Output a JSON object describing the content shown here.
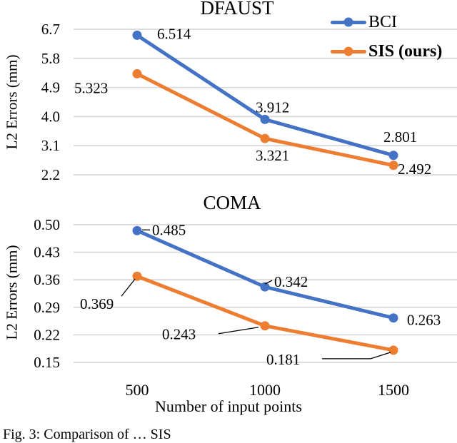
{
  "figure": {
    "caption": "Fig. 3:  Comparison of … SIS",
    "x_axis_title": "Number of input points",
    "y_axis_title": "L2 Errors (mm)"
  },
  "legend": {
    "position": "top-right",
    "items": [
      {
        "label": "BCI",
        "color": "#4472C4",
        "bold": false,
        "marker": "circle"
      },
      {
        "label": "SIS (ours)",
        "color": "#ED7D31",
        "bold": true,
        "marker": "circle"
      }
    ]
  },
  "colors": {
    "bci": "#4472C4",
    "sis": "#ED7D31",
    "gridline": "#D9D9D9",
    "text": "#000000",
    "background": "#FFFFFF"
  },
  "chart_data": [
    {
      "id": "dfaust",
      "type": "line",
      "title": "DFAUST",
      "categories": [
        "500",
        "1000",
        "1500"
      ],
      "xlabel": "Number of input points",
      "ylabel": "L2 Errors (mm)",
      "ylim": [
        2.2,
        6.7
      ],
      "yticks": [
        "6.7",
        "5.8",
        "4.9",
        "4.0",
        "3.1",
        "2.2"
      ],
      "grid": true,
      "show_x_tick_labels": false,
      "series": [
        {
          "name": "BCI",
          "color": "#4472C4",
          "values": [
            6.514,
            3.912,
            2.801
          ],
          "point_labels": [
            {
              "text": "6.514",
              "dx": 28,
              "dy": -2,
              "leader": null
            },
            {
              "text": "3.912",
              "dx": -13,
              "dy": -17,
              "leader": null
            },
            {
              "text": "2.801",
              "dx": -14,
              "dy": -26,
              "leader": null
            }
          ]
        },
        {
          "name": "SIS (ours)",
          "color": "#ED7D31",
          "values": [
            5.323,
            3.321,
            2.492
          ],
          "point_labels": [
            {
              "text": "5.323",
              "dx": -88,
              "dy": 20,
              "leader": null
            },
            {
              "text": "3.321",
              "dx": -13,
              "dy": 24,
              "leader": null
            },
            {
              "text": "2.492",
              "dx": 6,
              "dy": 5,
              "leader": null
            }
          ]
        }
      ]
    },
    {
      "id": "coma",
      "type": "line",
      "title": "COMA",
      "categories": [
        "500",
        "1000",
        "1500"
      ],
      "xlabel": "Number of input points",
      "ylabel": "L2 Errors (mm)",
      "ylim": [
        0.15,
        0.5
      ],
      "yticks": [
        "0.50",
        "0.43",
        "0.36",
        "0.29",
        "0.22",
        "0.15"
      ],
      "grid": true,
      "show_x_tick_labels": true,
      "series": [
        {
          "name": "BCI",
          "color": "#4472C4",
          "values": [
            0.485,
            0.342,
            0.263
          ],
          "point_labels": [
            {
              "text": "0.485",
              "dx": 21,
              "dy": -1,
              "leader": [
                [
                  7,
                  -1
                ],
                [
                  18,
                  -1
                ]
              ]
            },
            {
              "text": "0.342",
              "dx": 13,
              "dy": -7,
              "leader": [
                [
                  0,
                  -4
                ],
                [
                  10,
                  -9
                ]
              ]
            },
            {
              "text": "0.263",
              "dx": 19,
              "dy": 3,
              "leader": null
            }
          ]
        },
        {
          "name": "SIS (ours)",
          "color": "#ED7D31",
          "values": [
            0.369,
            0.243,
            0.181
          ],
          "point_labels": [
            {
              "text": "0.369",
              "dx": -80,
              "dy": 39,
              "leader": [
                [
                  -3,
                  4
                ],
                [
                  -22,
                  28
                ]
              ]
            },
            {
              "text": "0.243",
              "dx": -144,
              "dy": 12,
              "leader": [
                [
                  -65,
                  11
                ],
                [
                  -9,
                  2
                ]
              ]
            },
            {
              "text": "0.181",
              "dx": -178,
              "dy": 13,
              "leader": [
                [
                  -100,
                  12
                ],
                [
                  -32,
                  12
                ],
                [
                  -4,
                  3
                ]
              ]
            }
          ]
        }
      ]
    }
  ]
}
